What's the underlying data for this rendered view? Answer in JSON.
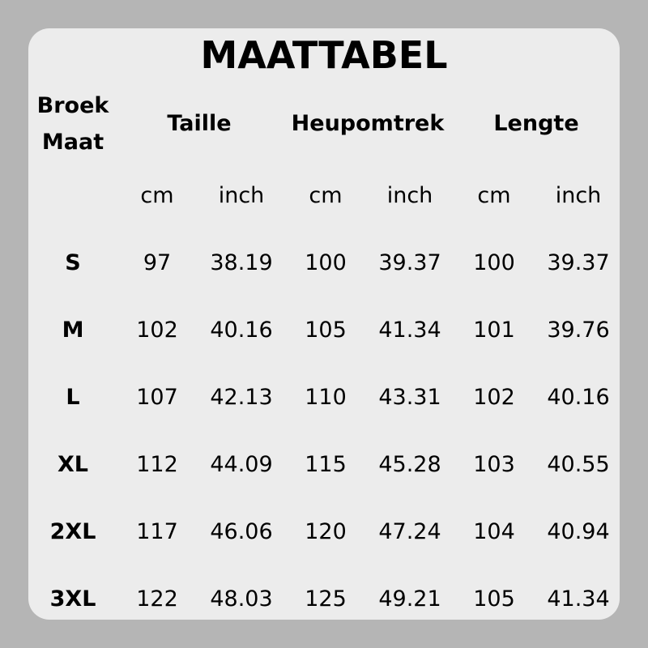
{
  "title": "MAATTABEL",
  "size_header": [
    "Broek",
    "Maat"
  ],
  "groups": [
    "Taille",
    "Heupomtrek",
    "Lengte"
  ],
  "units": [
    "cm",
    "inch",
    "cm",
    "inch",
    "cm",
    "inch"
  ],
  "rows": [
    {
      "size": "S",
      "values": [
        "97",
        "38.19",
        "100",
        "39.37",
        "100",
        "39.37"
      ]
    },
    {
      "size": "M",
      "values": [
        "102",
        "40.16",
        "105",
        "41.34",
        "101",
        "39.76"
      ]
    },
    {
      "size": "L",
      "values": [
        "107",
        "42.13",
        "110",
        "43.31",
        "102",
        "40.16"
      ]
    },
    {
      "size": "XL",
      "values": [
        "112",
        "44.09",
        "115",
        "45.28",
        "103",
        "40.55"
      ]
    },
    {
      "size": "2XL",
      "values": [
        "117",
        "46.06",
        "120",
        "47.24",
        "104",
        "40.94"
      ]
    },
    {
      "size": "3XL",
      "values": [
        "122",
        "48.03",
        "125",
        "49.21",
        "105",
        "41.34"
      ]
    }
  ]
}
